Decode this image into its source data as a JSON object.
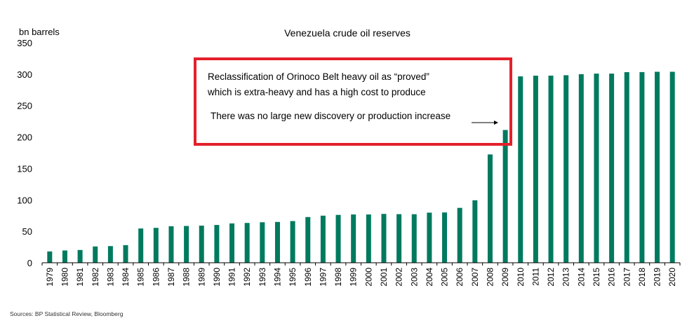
{
  "chart_data": {
    "type": "bar",
    "title": "Venezuela crude oil reserves",
    "ylabel": "bn barrels",
    "xlabel": "",
    "ylim": [
      0,
      350
    ],
    "yticks": [
      0,
      50,
      100,
      150,
      200,
      250,
      300,
      350
    ],
    "grid": false,
    "bar_color": "#007a5e",
    "categories": [
      "1979",
      "1980",
      "1981",
      "1982",
      "1983",
      "1984",
      "1985",
      "1986",
      "1987",
      "1988",
      "1989",
      "1990",
      "1991",
      "1992",
      "1993",
      "1994",
      "1995",
      "1996",
      "1997",
      "1998",
      "1999",
      "2000",
      "2001",
      "2002",
      "2003",
      "2004",
      "2005",
      "2006",
      "2007",
      "2008",
      "2009",
      "2010",
      "2011",
      "2012",
      "2013",
      "2014",
      "2015",
      "2016",
      "2017",
      "2018",
      "2019",
      "2020"
    ],
    "values": [
      18.0,
      19.5,
      20.3,
      25.9,
      26.5,
      28.0,
      54.5,
      55.5,
      58.1,
      58.5,
      59.0,
      60.1,
      62.6,
      63.3,
      64.4,
      64.9,
      66.3,
      72.7,
      74.9,
      76.1,
      76.8,
      76.8,
      77.7,
      77.3,
      77.2,
      79.7,
      80.0,
      87.3,
      99.4,
      172.3,
      211.2,
      296.5,
      297.6,
      297.7,
      298.3,
      300.0,
      300.9,
      300.9,
      303.2,
      303.3,
      303.8,
      303.8
    ]
  },
  "annotation": {
    "line1": "Reclassification of Orinoco Belt heavy oil as “proved”",
    "line2": "which is extra-heavy and has a high cost to produce",
    "line3": "There was no large new discovery or production increase",
    "border_color": "#e3202b"
  },
  "source": "Sources: BP Statistical Review, Bloomberg"
}
